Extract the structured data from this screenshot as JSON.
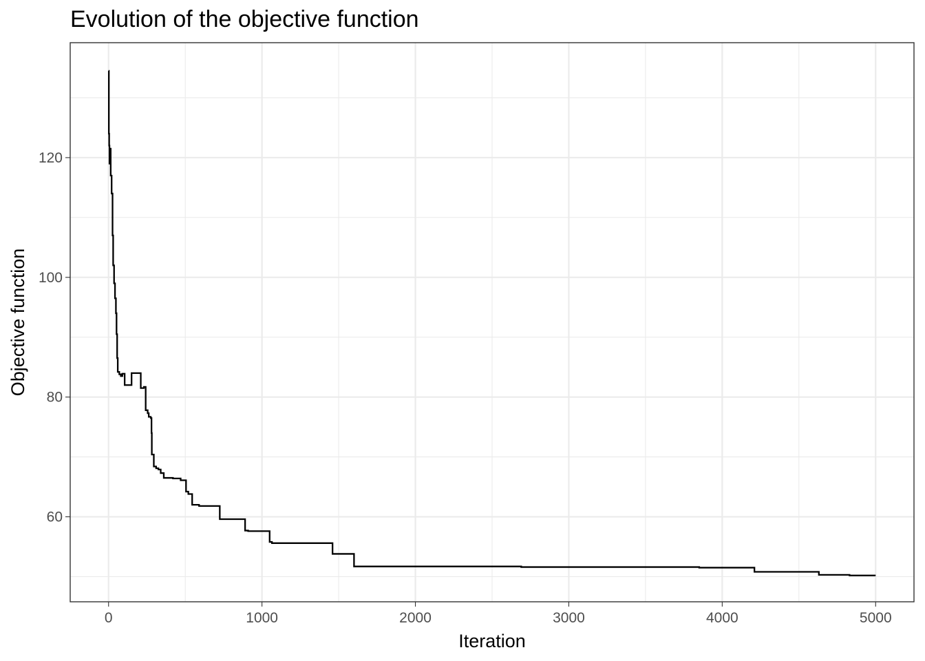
{
  "chart_data": {
    "type": "line",
    "title": "Evolution of the objective function",
    "xlabel": "Iteration",
    "ylabel": "Objective function",
    "xlim": [
      -250,
      5250
    ],
    "ylim": [
      45.8,
      139.2
    ],
    "x_ticks": [
      0,
      1000,
      2000,
      3000,
      4000,
      5000
    ],
    "y_ticks": [
      60,
      80,
      100,
      120
    ],
    "x_minor": [
      500,
      1500,
      2500,
      3500,
      4500
    ],
    "y_minor": [
      50,
      70,
      90,
      110,
      130
    ],
    "grid": true,
    "legend": "none",
    "step": true,
    "series": [
      {
        "points": [
          [
            0,
            134.5
          ],
          [
            2,
            124
          ],
          [
            4,
            122
          ],
          [
            6,
            119
          ],
          [
            10,
            121.5
          ],
          [
            14,
            117
          ],
          [
            20,
            114
          ],
          [
            26,
            107
          ],
          [
            30,
            102
          ],
          [
            36,
            99
          ],
          [
            42,
            96.5
          ],
          [
            48,
            94
          ],
          [
            52,
            90.5
          ],
          [
            56,
            86.5
          ],
          [
            60,
            84.2
          ],
          [
            70,
            83.8
          ],
          [
            80,
            83.5
          ],
          [
            90,
            83.9
          ],
          [
            105,
            82
          ],
          [
            150,
            84
          ],
          [
            210,
            81.5
          ],
          [
            230,
            81.7
          ],
          [
            242,
            77.8
          ],
          [
            255,
            77.3
          ],
          [
            262,
            76.7
          ],
          [
            275,
            76.5
          ],
          [
            280,
            74
          ],
          [
            282,
            70.4
          ],
          [
            295,
            68.4
          ],
          [
            310,
            68.1
          ],
          [
            325,
            67.9
          ],
          [
            340,
            67.3
          ],
          [
            360,
            66.5
          ],
          [
            420,
            66.4
          ],
          [
            470,
            66.1
          ],
          [
            505,
            64.2
          ],
          [
            520,
            63.8
          ],
          [
            545,
            62
          ],
          [
            590,
            61.8
          ],
          [
            725,
            59.6
          ],
          [
            890,
            57.7
          ],
          [
            910,
            57.6
          ],
          [
            1050,
            55.8
          ],
          [
            1065,
            55.6
          ],
          [
            1460,
            53.8
          ],
          [
            1600,
            51.7
          ],
          [
            2690,
            51.6
          ],
          [
            3850,
            51.5
          ],
          [
            4210,
            50.8
          ],
          [
            4630,
            50.3
          ],
          [
            4830,
            50.2
          ],
          [
            5000,
            50.2
          ]
        ]
      }
    ]
  }
}
